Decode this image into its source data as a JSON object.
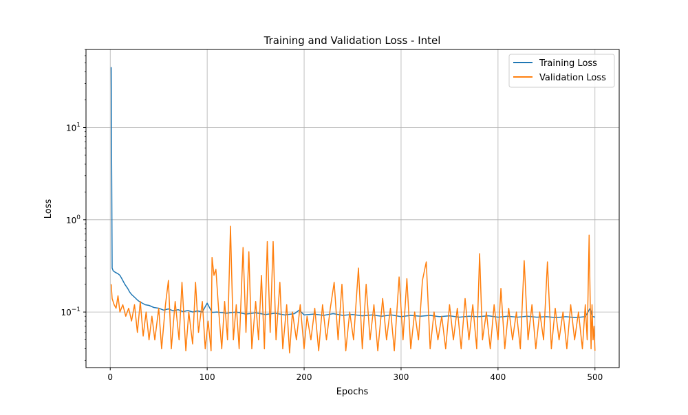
{
  "chart_data": {
    "type": "line",
    "title": "Training and Validation Loss - Intel",
    "xlabel": "Epochs",
    "ylabel": "Loss",
    "xlim": [
      -25,
      525
    ],
    "ylim": [
      0.025,
      70
    ],
    "yscale": "log",
    "grid": true,
    "legend_position": "top-right",
    "x_ticks": [
      0,
      100,
      200,
      300,
      400,
      500
    ],
    "x_tick_labels": [
      "0",
      "100",
      "200",
      "300",
      "400",
      "500"
    ],
    "y_ticks": [
      0.1,
      1,
      10
    ],
    "y_tick_labels": [
      {
        "base": "10",
        "exp": "−1"
      },
      {
        "base": "10",
        "exp": "0"
      },
      {
        "base": "10",
        "exp": "1"
      }
    ],
    "series": [
      {
        "name": "Training Loss",
        "color": "#1f77b4",
        "points": [
          [
            1,
            45
          ],
          [
            2,
            0.3
          ],
          [
            3,
            0.28
          ],
          [
            5,
            0.27
          ],
          [
            8,
            0.26
          ],
          [
            10,
            0.25
          ],
          [
            12,
            0.23
          ],
          [
            15,
            0.2
          ],
          [
            18,
            0.18
          ],
          [
            20,
            0.165
          ],
          [
            22,
            0.155
          ],
          [
            25,
            0.145
          ],
          [
            28,
            0.135
          ],
          [
            30,
            0.13
          ],
          [
            33,
            0.125
          ],
          [
            36,
            0.12
          ],
          [
            40,
            0.118
          ],
          [
            45,
            0.112
          ],
          [
            50,
            0.11
          ],
          [
            55,
            0.105
          ],
          [
            60,
            0.108
          ],
          [
            65,
            0.103
          ],
          [
            70,
            0.106
          ],
          [
            75,
            0.101
          ],
          [
            80,
            0.104
          ],
          [
            85,
            0.1
          ],
          [
            90,
            0.103
          ],
          [
            95,
            0.1
          ],
          [
            100,
            0.125
          ],
          [
            105,
            0.099
          ],
          [
            110,
            0.1
          ],
          [
            120,
            0.097
          ],
          [
            130,
            0.1
          ],
          [
            140,
            0.095
          ],
          [
            150,
            0.098
          ],
          [
            160,
            0.094
          ],
          [
            170,
            0.097
          ],
          [
            180,
            0.093
          ],
          [
            190,
            0.096
          ],
          [
            195,
            0.105
          ],
          [
            200,
            0.093
          ],
          [
            210,
            0.095
          ],
          [
            220,
            0.092
          ],
          [
            230,
            0.096
          ],
          [
            240,
            0.092
          ],
          [
            250,
            0.094
          ],
          [
            260,
            0.091
          ],
          [
            270,
            0.093
          ],
          [
            280,
            0.09
          ],
          [
            290,
            0.093
          ],
          [
            300,
            0.089
          ],
          [
            310,
            0.092
          ],
          [
            320,
            0.09
          ],
          [
            330,
            0.092
          ],
          [
            340,
            0.089
          ],
          [
            350,
            0.091
          ],
          [
            360,
            0.088
          ],
          [
            370,
            0.09
          ],
          [
            380,
            0.089
          ],
          [
            390,
            0.091
          ],
          [
            400,
            0.088
          ],
          [
            410,
            0.09
          ],
          [
            420,
            0.088
          ],
          [
            430,
            0.09
          ],
          [
            440,
            0.088
          ],
          [
            450,
            0.089
          ],
          [
            460,
            0.087
          ],
          [
            470,
            0.089
          ],
          [
            480,
            0.087
          ],
          [
            490,
            0.089
          ],
          [
            495,
            0.11
          ],
          [
            497,
            0.09
          ],
          [
            500,
            0.088
          ]
        ]
      },
      {
        "name": "Validation Loss",
        "color": "#ff7f0e",
        "points": [
          [
            1,
            0.2
          ],
          [
            2,
            0.14
          ],
          [
            4,
            0.12
          ],
          [
            6,
            0.11
          ],
          [
            8,
            0.15
          ],
          [
            10,
            0.1
          ],
          [
            13,
            0.12
          ],
          [
            16,
            0.09
          ],
          [
            19,
            0.11
          ],
          [
            22,
            0.08
          ],
          [
            25,
            0.12
          ],
          [
            28,
            0.06
          ],
          [
            31,
            0.13
          ],
          [
            34,
            0.055
          ],
          [
            37,
            0.1
          ],
          [
            40,
            0.05
          ],
          [
            43,
            0.09
          ],
          [
            46,
            0.05
          ],
          [
            50,
            0.11
          ],
          [
            53,
            0.04
          ],
          [
            57,
            0.12
          ],
          [
            60,
            0.22
          ],
          [
            63,
            0.04
          ],
          [
            67,
            0.13
          ],
          [
            71,
            0.05
          ],
          [
            74,
            0.21
          ],
          [
            78,
            0.038
          ],
          [
            81,
            0.1
          ],
          [
            85,
            0.045
          ],
          [
            88,
            0.21
          ],
          [
            91,
            0.06
          ],
          [
            95,
            0.13
          ],
          [
            98,
            0.04
          ],
          [
            101,
            0.08
          ],
          [
            104,
            0.038
          ],
          [
            105,
            0.39
          ],
          [
            107,
            0.25
          ],
          [
            109,
            0.29
          ],
          [
            112,
            0.1
          ],
          [
            115,
            0.04
          ],
          [
            118,
            0.13
          ],
          [
            121,
            0.05
          ],
          [
            124,
            0.85
          ],
          [
            127,
            0.05
          ],
          [
            130,
            0.12
          ],
          [
            133,
            0.04
          ],
          [
            137,
            0.5
          ],
          [
            140,
            0.06
          ],
          [
            143,
            0.45
          ],
          [
            146,
            0.04
          ],
          [
            150,
            0.13
          ],
          [
            153,
            0.05
          ],
          [
            156,
            0.25
          ],
          [
            159,
            0.04
          ],
          [
            162,
            0.58
          ],
          [
            165,
            0.06
          ],
          [
            168,
            0.58
          ],
          [
            171,
            0.05
          ],
          [
            175,
            0.21
          ],
          [
            178,
            0.04
          ],
          [
            182,
            0.12
          ],
          [
            185,
            0.036
          ],
          [
            188,
            0.1
          ],
          [
            192,
            0.05
          ],
          [
            196,
            0.12
          ],
          [
            200,
            0.04
          ],
          [
            203,
            0.09
          ],
          [
            207,
            0.05
          ],
          [
            211,
            0.11
          ],
          [
            215,
            0.038
          ],
          [
            219,
            0.12
          ],
          [
            223,
            0.05
          ],
          [
            227,
            0.11
          ],
          [
            231,
            0.21
          ],
          [
            235,
            0.05
          ],
          [
            239,
            0.2
          ],
          [
            243,
            0.038
          ],
          [
            247,
            0.1
          ],
          [
            251,
            0.05
          ],
          [
            256,
            0.3
          ],
          [
            260,
            0.04
          ],
          [
            264,
            0.2
          ],
          [
            268,
            0.05
          ],
          [
            272,
            0.12
          ],
          [
            276,
            0.038
          ],
          [
            281,
            0.14
          ],
          [
            285,
            0.05
          ],
          [
            289,
            0.11
          ],
          [
            293,
            0.038
          ],
          [
            298,
            0.24
          ],
          [
            302,
            0.05
          ],
          [
            306,
            0.23
          ],
          [
            310,
            0.04
          ],
          [
            314,
            0.1
          ],
          [
            318,
            0.05
          ],
          [
            322,
            0.22
          ],
          [
            326,
            0.35
          ],
          [
            330,
            0.04
          ],
          [
            334,
            0.1
          ],
          [
            338,
            0.05
          ],
          [
            342,
            0.09
          ],
          [
            346,
            0.04
          ],
          [
            350,
            0.12
          ],
          [
            354,
            0.05
          ],
          [
            358,
            0.11
          ],
          [
            362,
            0.04
          ],
          [
            366,
            0.14
          ],
          [
            370,
            0.05
          ],
          [
            374,
            0.12
          ],
          [
            378,
            0.04
          ],
          [
            381,
            0.43
          ],
          [
            384,
            0.05
          ],
          [
            388,
            0.1
          ],
          [
            392,
            0.04
          ],
          [
            396,
            0.12
          ],
          [
            400,
            0.05
          ],
          [
            403,
            0.18
          ],
          [
            407,
            0.04
          ],
          [
            411,
            0.11
          ],
          [
            415,
            0.05
          ],
          [
            419,
            0.1
          ],
          [
            423,
            0.04
          ],
          [
            427,
            0.36
          ],
          [
            431,
            0.05
          ],
          [
            435,
            0.12
          ],
          [
            439,
            0.04
          ],
          [
            443,
            0.1
          ],
          [
            447,
            0.05
          ],
          [
            451,
            0.35
          ],
          [
            455,
            0.04
          ],
          [
            459,
            0.11
          ],
          [
            463,
            0.05
          ],
          [
            467,
            0.1
          ],
          [
            471,
            0.04
          ],
          [
            475,
            0.12
          ],
          [
            479,
            0.05
          ],
          [
            483,
            0.1
          ],
          [
            487,
            0.04
          ],
          [
            490,
            0.12
          ],
          [
            492,
            0.05
          ],
          [
            494,
            0.68
          ],
          [
            495,
            0.15
          ],
          [
            496,
            0.04
          ],
          [
            497,
            0.12
          ],
          [
            498,
            0.05
          ],
          [
            499,
            0.07
          ],
          [
            500,
            0.038
          ]
        ]
      }
    ]
  }
}
